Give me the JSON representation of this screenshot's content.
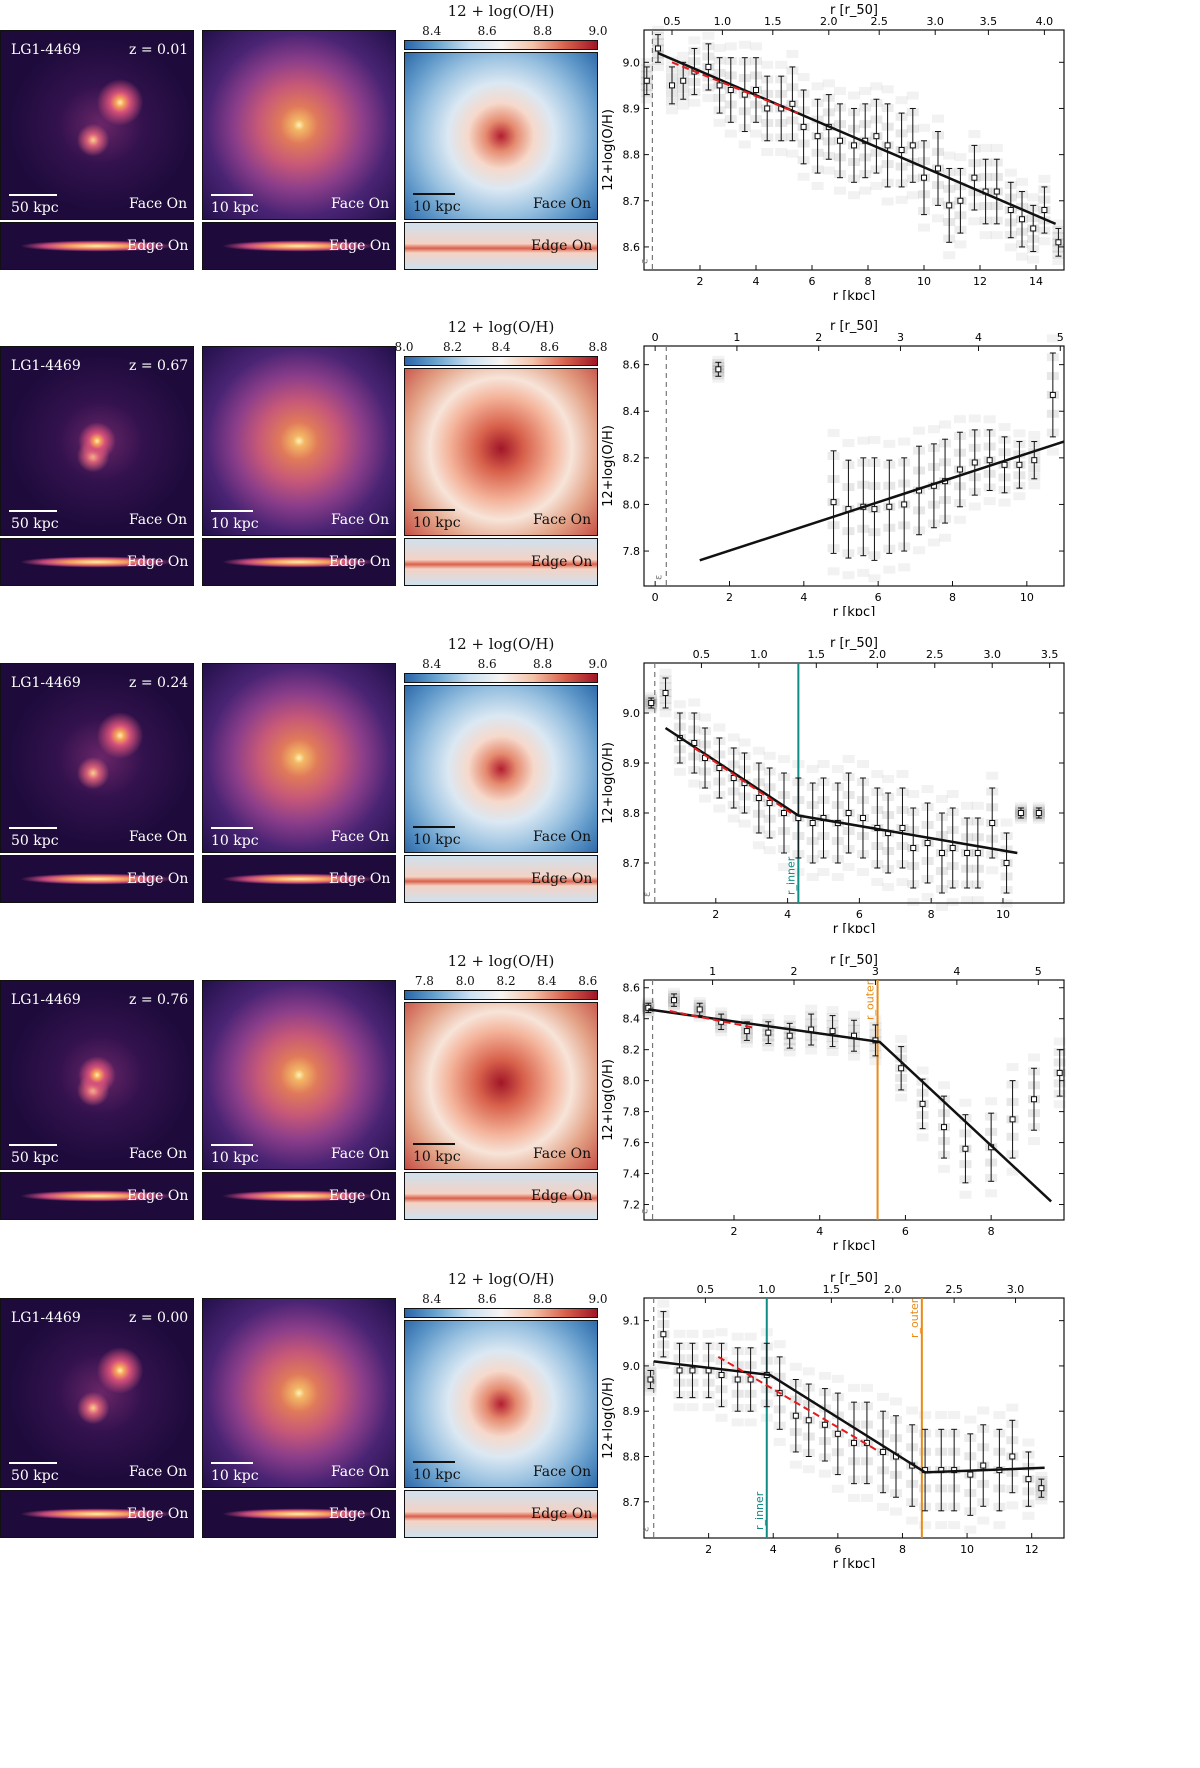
{
  "rows": [
    {
      "galaxy": "LG1-4469",
      "redshift": "z = 0.01",
      "scale_large": "50 kpc",
      "scale_small": "10 kpc",
      "scale_metal": "10 kpc",
      "face_on": "Face On",
      "edge_on": "Edge On",
      "cbar_title": "12 + log(O/H)",
      "cbar_ticks": [
        "8.4",
        "8.6",
        "8.8",
        "9.0"
      ],
      "cbar_range": [
        8.3,
        9.0
      ]
    },
    {
      "galaxy": "LG1-4469",
      "redshift": "z = 0.67",
      "scale_large": "50 kpc",
      "scale_small": "10 kpc",
      "scale_metal": "10 kpc",
      "face_on": "Face On",
      "edge_on": "Edge On",
      "cbar_title": "12 + log(O/H)",
      "cbar_ticks": [
        "8.0",
        "8.2",
        "8.4",
        "8.6",
        "8.8"
      ],
      "cbar_range": [
        8.0,
        8.8
      ]
    },
    {
      "galaxy": "LG1-4469",
      "redshift": "z = 0.24",
      "scale_large": "50 kpc",
      "scale_small": "10 kpc",
      "scale_metal": "10 kpc",
      "face_on": "Face On",
      "edge_on": "Edge On",
      "cbar_title": "12 + log(O/H)",
      "cbar_ticks": [
        "8.4",
        "8.6",
        "8.8",
        "9.0"
      ],
      "cbar_range": [
        8.3,
        9.0
      ]
    },
    {
      "galaxy": "LG1-4469",
      "redshift": "z = 0.76",
      "scale_large": "50 kpc",
      "scale_small": "10 kpc",
      "scale_metal": "10 kpc",
      "face_on": "Face On",
      "edge_on": "Edge On",
      "cbar_title": "12 + log(O/H)",
      "cbar_ticks": [
        "7.8",
        "8.0",
        "8.2",
        "8.4",
        "8.6"
      ],
      "cbar_range": [
        7.7,
        8.65
      ]
    },
    {
      "galaxy": "LG1-4469",
      "redshift": "z = 0.00",
      "scale_large": "50 kpc",
      "scale_small": "10 kpc",
      "scale_metal": "10 kpc",
      "face_on": "Face On",
      "edge_on": "Edge On",
      "cbar_title": "12 + log(O/H)",
      "cbar_ticks": [
        "8.4",
        "8.6",
        "8.8",
        "9.0"
      ],
      "cbar_range": [
        8.3,
        9.0
      ]
    }
  ],
  "chart_data": [
    {
      "type": "scatter",
      "xlabel": "r [kpc]",
      "ylabel": "12+log(O/H)",
      "top_xlabel": "r [r_50]",
      "xlim": [
        0,
        15
      ],
      "ylim": [
        8.55,
        9.07
      ],
      "xticks": [
        2,
        4,
        6,
        8,
        10,
        12,
        14
      ],
      "yticks": [
        8.6,
        8.7,
        8.8,
        8.9,
        9.0
      ],
      "top_ticks": [
        {
          "label": "0.5",
          "x": 1.0
        },
        {
          "label": "1.0",
          "x": 2.8
        },
        {
          "label": "1.5",
          "x": 4.6
        },
        {
          "label": "2.0",
          "x": 6.6
        },
        {
          "label": "2.5",
          "x": 8.4
        },
        {
          "label": "3.0",
          "x": 10.4
        },
        {
          "label": "3.5",
          "x": 12.3
        },
        {
          "label": "4.0",
          "x": 14.3
        }
      ],
      "softening_x": 0.3,
      "eps_label": "ε",
      "points": {
        "x": [
          0.1,
          0.5,
          1.0,
          1.4,
          1.8,
          2.3,
          2.7,
          3.1,
          3.6,
          4.0,
          4.4,
          4.9,
          5.3,
          5.7,
          6.2,
          6.6,
          7.0,
          7.5,
          7.9,
          8.3,
          8.7,
          9.2,
          9.6,
          10.0,
          10.5,
          10.9,
          11.3,
          11.8,
          12.2,
          12.6,
          13.1,
          13.5,
          13.9,
          14.3,
          14.8
        ],
        "y": [
          8.96,
          9.03,
          8.95,
          8.96,
          8.98,
          8.99,
          8.95,
          8.94,
          8.93,
          8.94,
          8.9,
          8.9,
          8.91,
          8.86,
          8.84,
          8.86,
          8.83,
          8.82,
          8.83,
          8.84,
          8.82,
          8.81,
          8.82,
          8.75,
          8.77,
          8.69,
          8.7,
          8.75,
          8.72,
          8.72,
          8.68,
          8.66,
          8.64,
          8.68,
          8.61
        ],
        "err": [
          0.03,
          0.03,
          0.04,
          0.04,
          0.05,
          0.05,
          0.06,
          0.07,
          0.08,
          0.07,
          0.07,
          0.07,
          0.08,
          0.08,
          0.08,
          0.07,
          0.08,
          0.08,
          0.08,
          0.08,
          0.09,
          0.08,
          0.08,
          0.08,
          0.08,
          0.08,
          0.07,
          0.07,
          0.07,
          0.07,
          0.06,
          0.06,
          0.05,
          0.05,
          0.03
        ]
      },
      "fit_black": [
        [
          0.5,
          9.02
        ],
        [
          14.7,
          8.65
        ]
      ],
      "fit_red": [
        [
          1.0,
          9.0
        ],
        [
          5.5,
          8.89
        ]
      ],
      "vlines": []
    },
    {
      "type": "scatter",
      "xlabel": "r [kpc]",
      "ylabel": "12+log(O/H)",
      "top_xlabel": "r [r_50]",
      "xlim": [
        -0.3,
        11
      ],
      "ylim": [
        7.65,
        8.68
      ],
      "xticks": [
        0,
        2,
        4,
        6,
        8,
        10
      ],
      "yticks": [
        7.8,
        8.0,
        8.2,
        8.4,
        8.6
      ],
      "top_ticks": [
        {
          "label": "0",
          "x": 0.0
        },
        {
          "label": "1",
          "x": 2.2
        },
        {
          "label": "2",
          "x": 4.4
        },
        {
          "label": "3",
          "x": 6.6
        },
        {
          "label": "4",
          "x": 8.7
        },
        {
          "label": "5",
          "x": 10.9
        }
      ],
      "softening_x": 0.3,
      "eps_label": "ε",
      "points": {
        "x": [
          1.7,
          4.8,
          5.2,
          5.6,
          5.9,
          6.3,
          6.7,
          7.1,
          7.5,
          7.8,
          8.2,
          8.6,
          9.0,
          9.4,
          9.8,
          10.2,
          10.7
        ],
        "y": [
          8.58,
          8.01,
          7.98,
          7.99,
          7.98,
          7.99,
          8.0,
          8.06,
          8.08,
          8.1,
          8.15,
          8.18,
          8.19,
          8.17,
          8.17,
          8.19,
          8.47
        ],
        "err": [
          0.03,
          0.22,
          0.21,
          0.21,
          0.22,
          0.2,
          0.2,
          0.19,
          0.18,
          0.18,
          0.16,
          0.14,
          0.13,
          0.12,
          0.1,
          0.08,
          0.18
        ]
      },
      "fit_black": [
        [
          1.2,
          7.76
        ],
        [
          11.0,
          8.27
        ]
      ],
      "fit_red": [],
      "vlines": []
    },
    {
      "type": "scatter",
      "xlabel": "r [kpc]",
      "ylabel": "12+log(O/H)",
      "top_xlabel": "r [r_50]",
      "xlim": [
        0,
        11.7
      ],
      "ylim": [
        8.62,
        9.1
      ],
      "xticks": [
        2,
        4,
        6,
        8,
        10
      ],
      "yticks": [
        8.7,
        8.8,
        8.9,
        9.0
      ],
      "top_ticks": [
        {
          "label": "0.5",
          "x": 1.6
        },
        {
          "label": "1.0",
          "x": 3.2
        },
        {
          "label": "1.5",
          "x": 4.8
        },
        {
          "label": "2.0",
          "x": 6.5
        },
        {
          "label": "2.5",
          "x": 8.1
        },
        {
          "label": "3.0",
          "x": 9.7
        },
        {
          "label": "3.5",
          "x": 11.3
        }
      ],
      "softening_x": 0.3,
      "eps_label": "ε",
      "points": {
        "x": [
          0.2,
          0.6,
          1.0,
          1.4,
          1.7,
          2.1,
          2.5,
          2.8,
          3.2,
          3.5,
          3.9,
          4.3,
          4.7,
          5.0,
          5.4,
          5.7,
          6.1,
          6.5,
          6.8,
          7.2,
          7.5,
          7.9,
          8.3,
          8.6,
          9.0,
          9.3,
          9.7,
          10.1,
          10.5,
          11.0
        ],
        "y": [
          9.02,
          9.04,
          8.95,
          8.94,
          8.91,
          8.89,
          8.87,
          8.86,
          8.83,
          8.82,
          8.8,
          8.79,
          8.78,
          8.79,
          8.78,
          8.8,
          8.79,
          8.77,
          8.76,
          8.77,
          8.73,
          8.74,
          8.72,
          8.73,
          8.72,
          8.72,
          8.78,
          8.7,
          8.8,
          8.8
        ],
        "err": [
          0.01,
          0.03,
          0.05,
          0.06,
          0.06,
          0.06,
          0.06,
          0.06,
          0.07,
          0.07,
          0.08,
          0.08,
          0.08,
          0.08,
          0.08,
          0.08,
          0.08,
          0.08,
          0.08,
          0.08,
          0.08,
          0.08,
          0.08,
          0.08,
          0.07,
          0.07,
          0.07,
          0.06,
          0.01,
          0.01
        ]
      },
      "fit_black": [
        [
          0.6,
          8.97
        ],
        [
          4.3,
          8.795
        ],
        [
          10.4,
          8.72
        ]
      ],
      "fit_red": [
        [
          1.4,
          8.93
        ],
        [
          4.1,
          8.8
        ]
      ],
      "vlines": [
        {
          "x": 4.3,
          "color": "#0f8c84",
          "label": "r_inner"
        }
      ]
    },
    {
      "type": "scatter",
      "xlabel": "r [kpc]",
      "ylabel": "12+log(O/H)",
      "top_xlabel": "r [r_50]",
      "xlim": [
        -0.1,
        9.7
      ],
      "ylim": [
        7.1,
        8.65
      ],
      "xticks": [
        2,
        4,
        6,
        8
      ],
      "yticks": [
        7.2,
        7.4,
        7.6,
        7.8,
        8.0,
        8.2,
        8.4,
        8.6
      ],
      "top_ticks": [
        {
          "label": "1",
          "x": 1.5
        },
        {
          "label": "2",
          "x": 3.4
        },
        {
          "label": "3",
          "x": 5.3
        },
        {
          "label": "4",
          "x": 7.2
        },
        {
          "label": "5",
          "x": 9.1
        }
      ],
      "softening_x": 0.1,
      "eps_label": "ε",
      "points": {
        "x": [
          0.0,
          0.6,
          1.2,
          1.7,
          2.3,
          2.8,
          3.3,
          3.8,
          4.3,
          4.8,
          5.3,
          5.9,
          6.4,
          6.9,
          7.4,
          8.0,
          8.5,
          9.0,
          9.6
        ],
        "y": [
          8.47,
          8.52,
          8.46,
          8.38,
          8.32,
          8.31,
          8.29,
          8.33,
          8.32,
          8.29,
          8.26,
          8.08,
          7.85,
          7.7,
          7.56,
          7.57,
          7.75,
          7.88,
          8.05
        ],
        "err": [
          0.03,
          0.04,
          0.04,
          0.05,
          0.06,
          0.07,
          0.08,
          0.1,
          0.1,
          0.1,
          0.1,
          0.14,
          0.16,
          0.2,
          0.22,
          0.22,
          0.25,
          0.2,
          0.15
        ]
      },
      "fit_black": [
        [
          0.0,
          8.46
        ],
        [
          5.4,
          8.25
        ],
        [
          9.4,
          7.22
        ]
      ],
      "fit_red": [
        [
          0.5,
          8.45
        ],
        [
          2.5,
          8.34
        ]
      ],
      "vlines": [
        {
          "x": 5.35,
          "color": "#e88a13",
          "label": "r_outer"
        }
      ]
    },
    {
      "type": "scatter",
      "xlabel": "r [kpc]",
      "ylabel": "12+log(O/H)",
      "top_xlabel": "r [r_50]",
      "xlim": [
        0,
        13
      ],
      "ylim": [
        8.62,
        9.15
      ],
      "xticks": [
        2,
        4,
        6,
        8,
        10,
        12
      ],
      "yticks": [
        8.7,
        8.8,
        8.9,
        9.0,
        9.1
      ],
      "top_ticks": [
        {
          "label": "0.5",
          "x": 1.9
        },
        {
          "label": "1.0",
          "x": 3.8
        },
        {
          "label": "1.5",
          "x": 5.8
        },
        {
          "label": "2.0",
          "x": 7.7
        },
        {
          "label": "2.5",
          "x": 9.6
        },
        {
          "label": "3.0",
          "x": 11.5
        }
      ],
      "softening_x": 0.3,
      "eps_label": "ε",
      "points": {
        "x": [
          0.2,
          0.6,
          1.1,
          1.5,
          2.0,
          2.4,
          2.9,
          3.3,
          3.8,
          4.2,
          4.7,
          5.1,
          5.6,
          6.0,
          6.5,
          6.9,
          7.4,
          7.8,
          8.3,
          8.7,
          9.2,
          9.6,
          10.1,
          10.5,
          11.0,
          11.4,
          11.9,
          12.3
        ],
        "y": [
          8.97,
          9.07,
          8.99,
          8.99,
          8.99,
          8.98,
          8.97,
          8.97,
          8.98,
          8.94,
          8.89,
          8.88,
          8.87,
          8.85,
          8.83,
          8.83,
          8.81,
          8.8,
          8.78,
          8.77,
          8.77,
          8.77,
          8.76,
          8.78,
          8.77,
          8.8,
          8.75,
          8.73
        ],
        "err": [
          0.02,
          0.05,
          0.06,
          0.06,
          0.06,
          0.07,
          0.07,
          0.07,
          0.07,
          0.08,
          0.08,
          0.08,
          0.08,
          0.09,
          0.09,
          0.09,
          0.09,
          0.09,
          0.09,
          0.09,
          0.09,
          0.09,
          0.09,
          0.09,
          0.09,
          0.08,
          0.06,
          0.02
        ]
      },
      "fit_black": [
        [
          0.3,
          9.01
        ],
        [
          3.9,
          8.98
        ],
        [
          8.7,
          8.765
        ],
        [
          12.4,
          8.775
        ]
      ],
      "fit_red": [
        [
          2.3,
          9.02
        ],
        [
          7.3,
          8.81
        ]
      ],
      "vlines": [
        {
          "x": 3.8,
          "color": "#0f8c84",
          "label": "r_inner"
        },
        {
          "x": 8.6,
          "color": "#e88a13",
          "label": "r_outer"
        }
      ]
    }
  ]
}
